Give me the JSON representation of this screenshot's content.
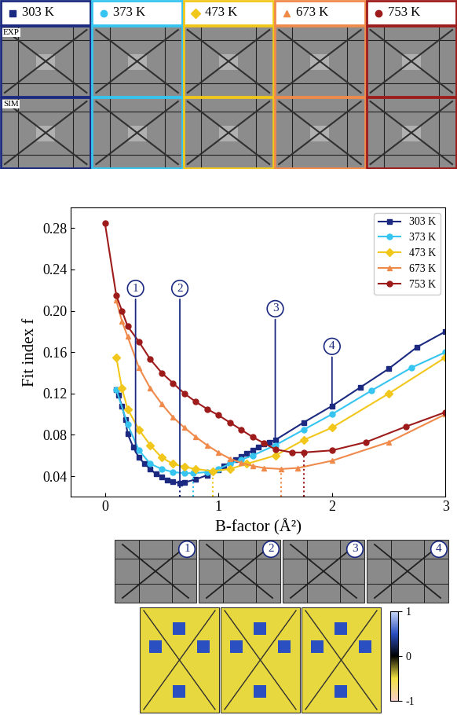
{
  "chart_data": {
    "type": "line",
    "x_label": "B-factor (Å²)",
    "y_label": "Fit index f",
    "xlim": [
      -0.3,
      3
    ],
    "xticks": [
      0,
      1,
      2,
      3
    ],
    "ylim": [
      0.02,
      0.3
    ],
    "yticks": [
      0.04,
      0.08,
      0.12,
      0.16,
      {
        "value": 0.2,
        "label": "0.20"
      },
      0.24,
      0.28
    ],
    "legend": "upper right",
    "series": [
      {
        "name": "303 K",
        "color": "#1b2a80",
        "marker": "square",
        "x": [
          0.1,
          0.12,
          0.15,
          0.18,
          0.2,
          0.25,
          0.3,
          0.35,
          0.4,
          0.45,
          0.5,
          0.55,
          0.6,
          0.66,
          0.7,
          0.8,
          0.9,
          1.0,
          1.05,
          1.1,
          1.15,
          1.2,
          1.25,
          1.3,
          1.35,
          1.4,
          1.45,
          1.5,
          1.75,
          2.0,
          2.25,
          2.5,
          2.75,
          3.0
        ],
        "values": [
          0.124,
          0.118,
          0.108,
          0.095,
          0.081,
          0.068,
          0.058,
          0.052,
          0.047,
          0.042,
          0.039,
          0.036,
          0.035,
          0.033,
          0.034,
          0.037,
          0.041,
          0.046,
          0.05,
          0.053,
          0.056,
          0.059,
          0.062,
          0.065,
          0.068,
          0.071,
          0.073,
          0.075,
          0.092,
          0.108,
          0.126,
          0.144,
          0.165,
          0.18
        ],
        "minimum": {
          "x": 0.66,
          "y": 0.033
        }
      },
      {
        "name": "373 K",
        "color": "#36c5f0",
        "marker": "circle",
        "x": [
          0.1,
          0.2,
          0.3,
          0.4,
          0.5,
          0.6,
          0.7,
          0.78,
          0.9,
          1.0,
          1.1,
          1.2,
          1.3,
          1.5,
          1.75,
          2.0,
          2.35,
          2.7,
          3.0
        ],
        "values": [
          0.124,
          0.09,
          0.065,
          0.052,
          0.047,
          0.044,
          0.043,
          0.043,
          0.044,
          0.047,
          0.052,
          0.056,
          0.06,
          0.07,
          0.085,
          0.1,
          0.123,
          0.145,
          0.16
        ],
        "minimum": {
          "x": 0.78,
          "y": 0.043
        }
      },
      {
        "name": "473 K",
        "color": "#f2c71b",
        "marker": "diamond",
        "x": [
          0.1,
          0.15,
          0.2,
          0.3,
          0.4,
          0.5,
          0.6,
          0.7,
          0.8,
          0.95,
          1.1,
          1.25,
          1.5,
          1.75,
          2.0,
          2.5,
          3.0
        ],
        "values": [
          0.155,
          0.125,
          0.105,
          0.085,
          0.07,
          0.058,
          0.052,
          0.049,
          0.047,
          0.045,
          0.047,
          0.052,
          0.06,
          0.075,
          0.087,
          0.12,
          0.155
        ],
        "minimum": {
          "x": 0.95,
          "y": 0.045
        }
      },
      {
        "name": "673 K",
        "color": "#f08a4b",
        "marker": "triangle",
        "x": [
          0.1,
          0.15,
          0.2,
          0.3,
          0.4,
          0.5,
          0.6,
          0.7,
          0.8,
          0.9,
          1.0,
          1.1,
          1.2,
          1.3,
          1.4,
          1.55,
          1.7,
          2.0,
          2.5,
          3.0
        ],
        "values": [
          0.21,
          0.19,
          0.175,
          0.145,
          0.125,
          0.11,
          0.097,
          0.087,
          0.078,
          0.07,
          0.063,
          0.057,
          0.053,
          0.05,
          0.048,
          0.047,
          0.048,
          0.055,
          0.073,
          0.1
        ],
        "minimum": {
          "x": 1.55,
          "y": 0.047
        }
      },
      {
        "name": "753 K",
        "color": "#9e1b1b",
        "marker": "circle",
        "x": [
          0,
          0.1,
          0.15,
          0.2,
          0.3,
          0.4,
          0.5,
          0.6,
          0.7,
          0.8,
          0.9,
          1.0,
          1.1,
          1.2,
          1.3,
          1.4,
          1.5,
          1.65,
          1.75,
          2.0,
          2.3,
          2.65,
          3.0
        ],
        "values": [
          0.285,
          0.215,
          0.2,
          0.185,
          0.17,
          0.153,
          0.14,
          0.13,
          0.12,
          0.112,
          0.105,
          0.099,
          0.092,
          0.085,
          0.078,
          0.072,
          0.066,
          0.063,
          0.063,
          0.065,
          0.073,
          0.088,
          0.102
        ],
        "minimum": {
          "x": 1.75,
          "y": 0.063
        }
      }
    ],
    "annotations": [
      {
        "text": "1",
        "x": 0.27,
        "y": 0.063
      },
      {
        "text": "2",
        "x": 0.66,
        "y": 0.033
      },
      {
        "text": "3",
        "x": 1.5,
        "y": 0.075
      },
      {
        "text": "4",
        "x": 2.0,
        "y": 0.108
      }
    ]
  },
  "image_rows": [
    "EXP",
    "SIM"
  ],
  "colorbar": {
    "range": [
      -1,
      1
    ],
    "ticks": [
      -1,
      0,
      1
    ]
  }
}
